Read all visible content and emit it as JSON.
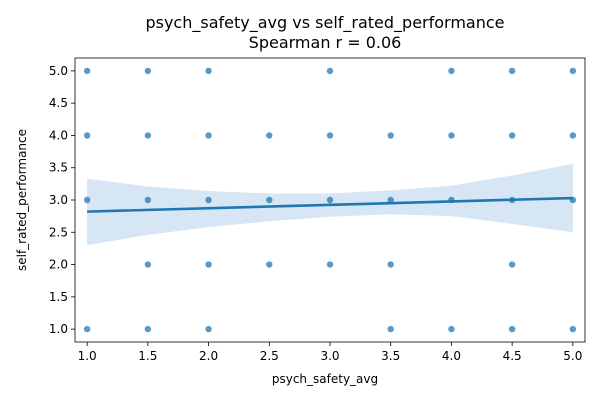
{
  "chart_data": {
    "type": "scatter",
    "title": "psych_safety_avg vs self_rated_performance",
    "subtitle": "Spearman r = 0.06",
    "xlabel": "psych_safety_avg",
    "ylabel": "self_rated_performance",
    "xlim": [
      0.9,
      5.1
    ],
    "ylim": [
      0.8,
      5.2
    ],
    "x_ticks": [
      "1.0",
      "1.5",
      "2.0",
      "2.5",
      "3.0",
      "3.5",
      "4.0",
      "4.5",
      "5.0"
    ],
    "y_ticks": [
      "1.0",
      "1.5",
      "2.0",
      "2.5",
      "3.0",
      "3.5",
      "4.0",
      "4.5",
      "5.0"
    ],
    "grid": false,
    "colors": {
      "points": "#1f77b4",
      "line": "#1f77b4",
      "band": "#c6dbef"
    },
    "points": [
      {
        "x": 1.0,
        "y": 5.0
      },
      {
        "x": 1.0,
        "y": 4.0
      },
      {
        "x": 1.0,
        "y": 3.0
      },
      {
        "x": 1.0,
        "y": 1.0
      },
      {
        "x": 1.5,
        "y": 5.0
      },
      {
        "x": 1.5,
        "y": 4.0
      },
      {
        "x": 1.5,
        "y": 3.0
      },
      {
        "x": 1.5,
        "y": 2.0
      },
      {
        "x": 1.5,
        "y": 1.0
      },
      {
        "x": 2.0,
        "y": 5.0
      },
      {
        "x": 2.0,
        "y": 4.0
      },
      {
        "x": 2.0,
        "y": 3.0
      },
      {
        "x": 2.0,
        "y": 2.0
      },
      {
        "x": 2.0,
        "y": 1.0
      },
      {
        "x": 2.5,
        "y": 4.0
      },
      {
        "x": 2.5,
        "y": 3.0
      },
      {
        "x": 2.5,
        "y": 2.0
      },
      {
        "x": 3.0,
        "y": 5.0
      },
      {
        "x": 3.0,
        "y": 4.0
      },
      {
        "x": 3.0,
        "y": 3.0
      },
      {
        "x": 3.0,
        "y": 2.0
      },
      {
        "x": 3.5,
        "y": 4.0
      },
      {
        "x": 3.5,
        "y": 3.0
      },
      {
        "x": 3.5,
        "y": 2.0
      },
      {
        "x": 3.5,
        "y": 1.0
      },
      {
        "x": 4.0,
        "y": 5.0
      },
      {
        "x": 4.0,
        "y": 4.0
      },
      {
        "x": 4.0,
        "y": 3.0
      },
      {
        "x": 4.0,
        "y": 1.0
      },
      {
        "x": 4.5,
        "y": 5.0
      },
      {
        "x": 4.5,
        "y": 4.0
      },
      {
        "x": 4.5,
        "y": 3.0
      },
      {
        "x": 4.5,
        "y": 2.0
      },
      {
        "x": 4.5,
        "y": 1.0
      },
      {
        "x": 5.0,
        "y": 5.0
      },
      {
        "x": 5.0,
        "y": 4.0
      },
      {
        "x": 5.0,
        "y": 3.0
      },
      {
        "x": 5.0,
        "y": 1.0
      }
    ],
    "regression": {
      "x": [
        1.0,
        5.0
      ],
      "y": [
        2.82,
        3.03
      ]
    },
    "confidence_band": {
      "x": [
        1.0,
        1.5,
        2.0,
        2.5,
        3.0,
        3.5,
        4.0,
        4.5,
        5.0
      ],
      "lower": [
        2.3,
        2.46,
        2.58,
        2.67,
        2.74,
        2.78,
        2.75,
        2.63,
        2.5
      ],
      "upper": [
        3.33,
        3.21,
        3.14,
        3.1,
        3.1,
        3.15,
        3.22,
        3.38,
        3.56
      ]
    }
  }
}
